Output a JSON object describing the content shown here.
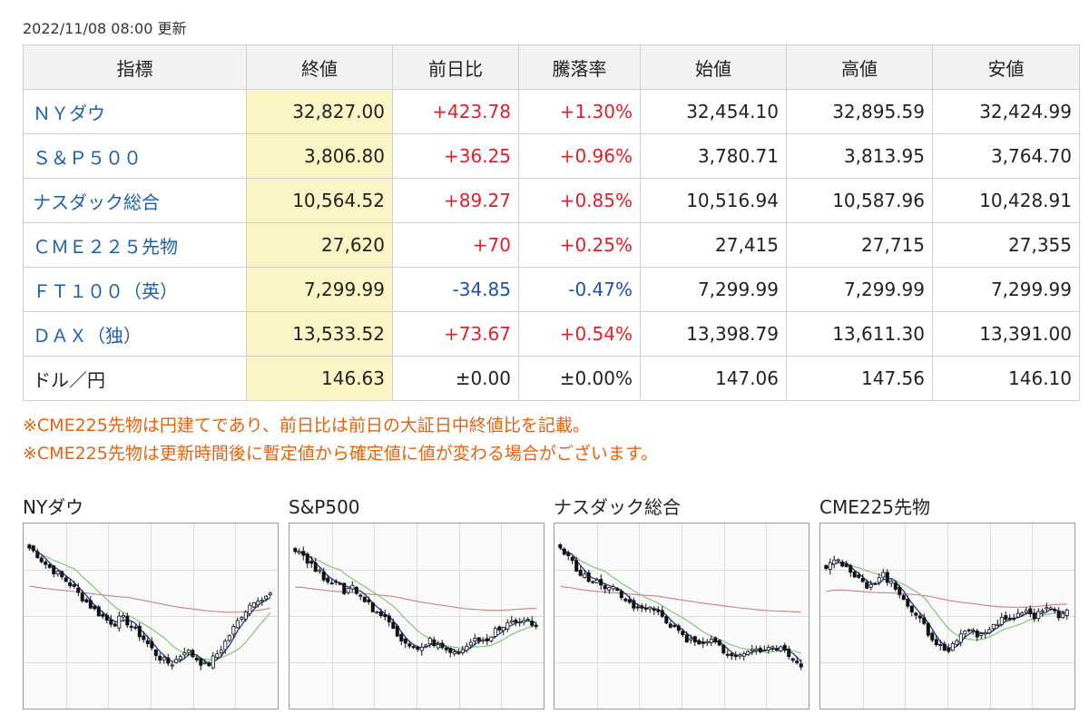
{
  "updated_text": "2022/11/08 08:00 更新",
  "table": {
    "headers": [
      "指標",
      "終値",
      "前日比",
      "騰落率",
      "始値",
      "高値",
      "安値"
    ],
    "rows": [
      {
        "name": "ＮＹダウ",
        "link": true,
        "close": "32,827.00",
        "change": "+423.78",
        "rate": "+1.30%",
        "open": "32,454.10",
        "high": "32,895.59",
        "low": "32,424.99",
        "dir": "up"
      },
      {
        "name": "Ｓ＆Ｐ５００",
        "link": true,
        "close": "3,806.80",
        "change": "+36.25",
        "rate": "+0.96%",
        "open": "3,780.71",
        "high": "3,813.95",
        "low": "3,764.70",
        "dir": "up"
      },
      {
        "name": "ナスダック総合",
        "link": true,
        "close": "10,564.52",
        "change": "+89.27",
        "rate": "+0.85%",
        "open": "10,516.94",
        "high": "10,587.96",
        "low": "10,428.91",
        "dir": "up"
      },
      {
        "name": "ＣＭＥ２２５先物",
        "link": true,
        "close": "27,620",
        "change": "+70",
        "rate": "+0.25%",
        "open": "27,415",
        "high": "27,715",
        "low": "27,355",
        "dir": "up"
      },
      {
        "name": "ＦＴ１００（英）",
        "link": true,
        "close": "7,299.99",
        "change": "-34.85",
        "rate": "-0.47%",
        "open": "7,299.99",
        "high": "7,299.99",
        "low": "7,299.99",
        "dir": "down"
      },
      {
        "name": "ＤＡＸ（独）",
        "link": true,
        "close": "13,533.52",
        "change": "+73.67",
        "rate": "+0.54%",
        "open": "13,398.79",
        "high": "13,611.30",
        "low": "13,391.00",
        "dir": "up"
      },
      {
        "name": "ドル／円",
        "link": false,
        "close": "146.63",
        "change": "±0.00",
        "rate": "±0.00%",
        "open": "147.06",
        "high": "147.56",
        "low": "146.10",
        "dir": "flat"
      }
    ]
  },
  "notes": [
    "※CME225先物は円建てであり、前日比は前日の大証日中終値比を記載。",
    "※CME225先物は更新時間後に暫定値から確定値に値が変わる場合がございます。"
  ],
  "colors": {
    "up": "#e0202a",
    "down": "#1a4fbf",
    "link": "#1a5fb4",
    "highlight": "#fbf4c4",
    "note": "#e8620c"
  },
  "chart_data": [
    {
      "type": "candlestick",
      "title": "NYダウ",
      "ma": [
        "short",
        "mid",
        "long"
      ],
      "shape": [
        0.92,
        0.88,
        0.82,
        0.78,
        0.74,
        0.7,
        0.66,
        0.6,
        0.55,
        0.5,
        0.46,
        0.42,
        0.4,
        0.44,
        0.4,
        0.35,
        0.3,
        0.24,
        0.18,
        0.14,
        0.12,
        0.16,
        0.22,
        0.18,
        0.14,
        0.1,
        0.16,
        0.22,
        0.3,
        0.38,
        0.46,
        0.52,
        0.58,
        0.56,
        0.6
      ]
    },
    {
      "type": "candlestick",
      "title": "S&P500",
      "ma": [
        "short",
        "mid",
        "long"
      ],
      "shape": [
        0.92,
        0.88,
        0.82,
        0.76,
        0.72,
        0.7,
        0.66,
        0.62,
        0.66,
        0.6,
        0.55,
        0.5,
        0.46,
        0.42,
        0.36,
        0.3,
        0.26,
        0.24,
        0.22,
        0.28,
        0.26,
        0.22,
        0.2,
        0.18,
        0.22,
        0.26,
        0.3,
        0.28,
        0.34,
        0.36,
        0.4,
        0.42,
        0.44,
        0.4,
        0.36
      ]
    },
    {
      "type": "candlestick",
      "title": "ナスダック総合",
      "ma": [
        "short",
        "mid",
        "long"
      ],
      "shape": [
        0.92,
        0.86,
        0.8,
        0.74,
        0.7,
        0.68,
        0.66,
        0.64,
        0.62,
        0.58,
        0.54,
        0.5,
        0.48,
        0.52,
        0.46,
        0.42,
        0.36,
        0.32,
        0.28,
        0.26,
        0.24,
        0.28,
        0.26,
        0.22,
        0.18,
        0.16,
        0.2,
        0.22,
        0.2,
        0.24,
        0.26,
        0.22,
        0.18,
        0.14,
        0.12
      ]
    },
    {
      "type": "candlestick",
      "title": "CME225先物",
      "ma": [
        "short",
        "mid",
        "long"
      ],
      "shape": [
        0.8,
        0.86,
        0.82,
        0.76,
        0.72,
        0.68,
        0.66,
        0.7,
        0.74,
        0.68,
        0.62,
        0.58,
        0.5,
        0.44,
        0.36,
        0.3,
        0.24,
        0.2,
        0.26,
        0.32,
        0.38,
        0.34,
        0.3,
        0.36,
        0.4,
        0.44,
        0.42,
        0.46,
        0.48,
        0.44,
        0.48,
        0.5,
        0.48,
        0.46,
        0.5
      ]
    }
  ]
}
